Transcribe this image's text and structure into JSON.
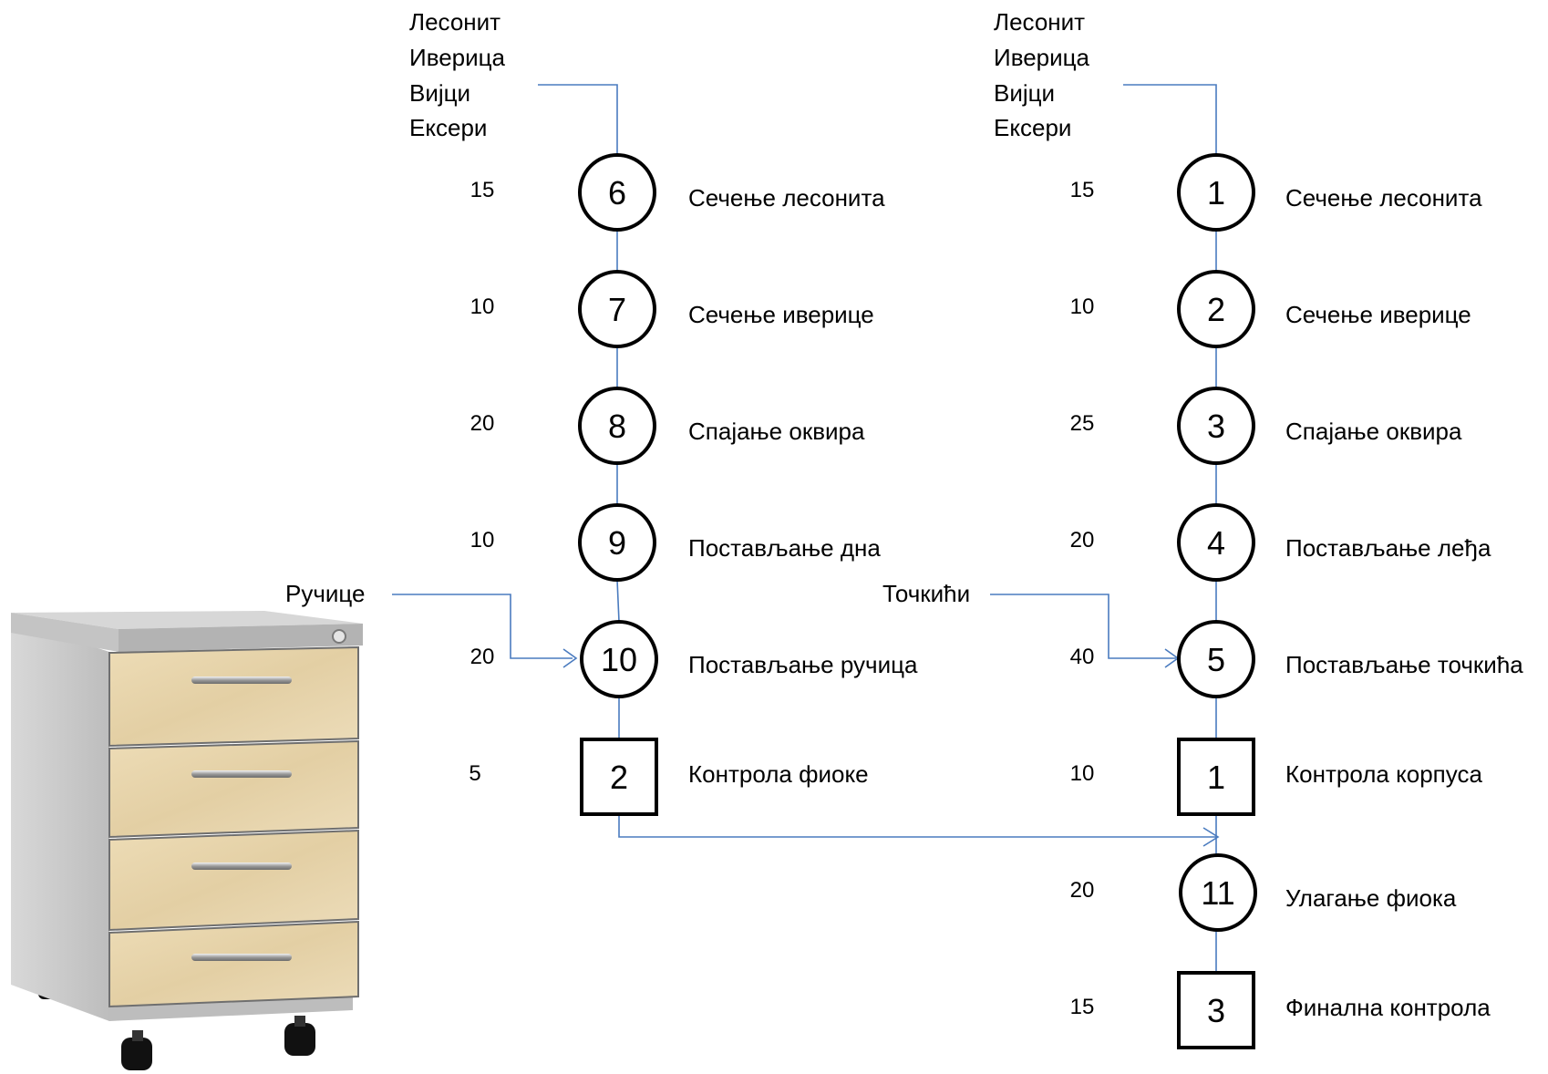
{
  "left_chain": {
    "inputs": [
      "Лесонит",
      "Иверица",
      "Вијци",
      "Ексери"
    ],
    "steps": [
      {
        "shape": "circle",
        "id": "6",
        "time": "15",
        "label": "Сечење лесонита"
      },
      {
        "shape": "circle",
        "id": "7",
        "time": "10",
        "label": "Сечење иверице"
      },
      {
        "shape": "circle",
        "id": "8",
        "time": "20",
        "label": "Спајање оквира"
      },
      {
        "shape": "circle",
        "id": "9",
        "time": "10",
        "label": "Постављање дна"
      },
      {
        "shape": "circle",
        "id": "10",
        "time": "20",
        "label": "Постављање ручица"
      },
      {
        "shape": "square",
        "id": "2",
        "time": "5",
        "label": "Контрола фиоке"
      }
    ],
    "side_input": "Ручице"
  },
  "right_chain": {
    "inputs": [
      "Лесонит",
      "Иверица",
      "Вијци",
      "Ексери"
    ],
    "steps": [
      {
        "shape": "circle",
        "id": "1",
        "time": "15",
        "label": "Сечење лесонита"
      },
      {
        "shape": "circle",
        "id": "2",
        "time": "10",
        "label": "Сечење иверице"
      },
      {
        "shape": "circle",
        "id": "3",
        "time": "25",
        "label": "Спајање оквира"
      },
      {
        "shape": "circle",
        "id": "4",
        "time": "20",
        "label": "Постављање леђа"
      },
      {
        "shape": "circle",
        "id": "5",
        "time": "40",
        "label": "Постављање точкића"
      },
      {
        "shape": "square",
        "id": "1",
        "time": "10",
        "label": "Контрола корпуса"
      },
      {
        "shape": "circle",
        "id": "11",
        "time": "20",
        "label": "Улагање фиока"
      },
      {
        "shape": "square",
        "id": "3",
        "time": "15",
        "label": "Финална контрола"
      }
    ],
    "side_input": "Точкићи"
  },
  "colors": {
    "connector": "#4a7bbf",
    "node_stroke": "#000000",
    "cabinet_wood": "#e8d6b0",
    "cabinet_body": "#c9c9c9"
  },
  "illustration": "drawer-cabinet-on-wheels"
}
